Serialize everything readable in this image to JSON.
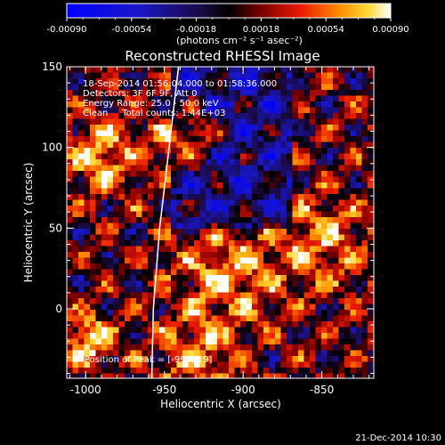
{
  "colorbar": {
    "ticks": [
      "-0.00090",
      "-0.00054",
      "-0.00018",
      "0.00018",
      "0.00054",
      "0.00090"
    ],
    "unit_label": "(photons cm⁻² s⁻¹ asec⁻²)",
    "range": [
      -0.0009,
      0.0009
    ]
  },
  "chart_data": {
    "type": "heatmap",
    "title": "Reconstructed RHESSI Image",
    "xlabel": "Heliocentric X (arcsec)",
    "ylabel": "Heliocentric Y (arcsec)",
    "xlim": [
      -1012,
      -817
    ],
    "ylim": [
      -43,
      150
    ],
    "x_ticks": [
      "-1000",
      "-950",
      "-900",
      "-850"
    ],
    "y_ticks": [
      "0",
      "50",
      "100",
      "150"
    ],
    "x_tick_values": [
      -1000,
      -950,
      -900,
      -850
    ],
    "y_tick_values": [
      0,
      50,
      100,
      150
    ],
    "limb_curve": [
      [
        -958,
        -43
      ],
      [
        -957,
        0
      ],
      [
        -953,
        50
      ],
      [
        -947,
        100
      ],
      [
        -941,
        150
      ]
    ],
    "annotation_lines": [
      "18-Sep-2014 01:56:04.000 to 01:58:36.000",
      "Detectors: 3F 6F 9F, Att 0",
      "Energy Range: 25.0 - 50.0 keV",
      "Clean     Total counts: 1.44E+03"
    ],
    "peak_text": "Position of Peak = [-997,-19]",
    "peak_position": [
      -997,
      -19
    ],
    "colormap": "blue-black-red-yellow-white"
  },
  "footer": {
    "timestamp": "21-Dec-2014 10:30"
  }
}
